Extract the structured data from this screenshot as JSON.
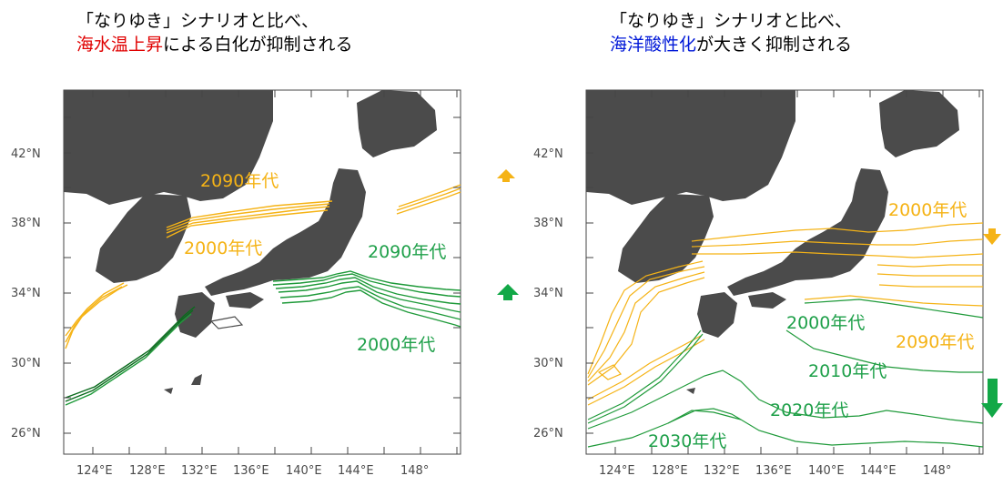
{
  "colors": {
    "land": "#4b4b4b",
    "warming_line": "#f5b316",
    "acid_line": "#1f9a3a",
    "acid_line_dark": "#0a6b1d",
    "warming_text": "#f5b316",
    "acid_text": "#1fa04a",
    "red_highlight": "#e00000",
    "blue_highlight": "#0018d8",
    "axis": "#444444"
  },
  "left_panel": {
    "title_line1": "「なりゆき」シナリオと比べ、",
    "title_line2_highlight": "海水温上昇",
    "title_line2_rest": "による白化が抑制される",
    "labels": [
      {
        "text": "2090年代",
        "color": "warming"
      },
      {
        "text": "2000年代",
        "color": "warming"
      },
      {
        "text": "2090年代",
        "color": "acid"
      },
      {
        "text": "2000年代",
        "color": "acid"
      }
    ],
    "arrows": [
      {
        "name": "up-arrow-orange",
        "direction": "up",
        "color": "warming"
      },
      {
        "name": "up-arrow-green",
        "direction": "up",
        "color": "acid"
      }
    ]
  },
  "right_panel": {
    "title_line1": "「なりゆき」シナリオと比べ、",
    "title_line2_highlight": "海洋酸性化",
    "title_line2_rest": "が大きく抑制される",
    "labels": [
      {
        "text": "2000年代",
        "color": "warming"
      },
      {
        "text": "2000年代",
        "color": "acid"
      },
      {
        "text": "2090年代",
        "color": "warming"
      },
      {
        "text": "2010年代",
        "color": "acid"
      },
      {
        "text": "2020年代",
        "color": "acid"
      },
      {
        "text": "2030年代",
        "color": "acid"
      }
    ],
    "arrows": [
      {
        "name": "down-arrow-orange",
        "direction": "down",
        "color": "warming"
      },
      {
        "name": "down-arrow-green",
        "direction": "down",
        "color": "acid"
      }
    ]
  },
  "axes": {
    "lat_ticks": [
      "42°N",
      "38°N",
      "34°N",
      "30°N",
      "26°N"
    ],
    "lon_ticks": [
      "124°E",
      "128°E",
      "132°E",
      "136°E",
      "140°E",
      "144°E",
      "148°"
    ]
  }
}
